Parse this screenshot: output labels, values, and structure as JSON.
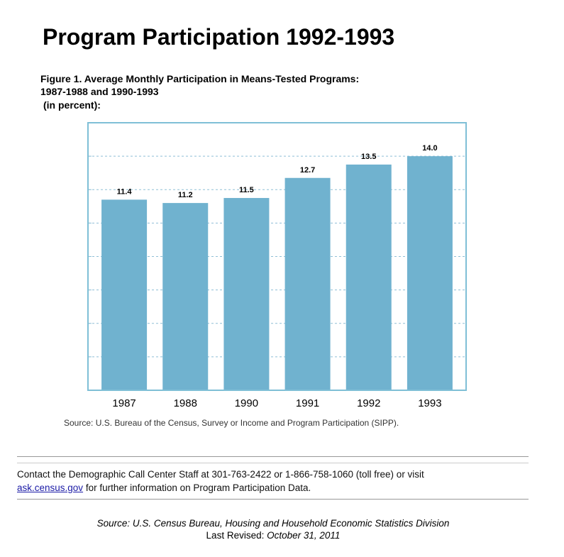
{
  "page": {
    "heading": "Program Participation 1992-1993",
    "source_note": "Source: U.S. Bureau of the Census, Survey or Income and Program Participation (SIPP).",
    "contact_text": "Contact the Demographic Call Center Staff at 301-763-2422 or 1-866-758-1060 (toll free) or visit",
    "contact_link": "ask.census.gov",
    "contact_tail": "for further information on Program Participation Data.",
    "footer_source": "Source: U.S. Census Bureau, Housing and Household Economic Statistics Division",
    "footer_revised_label": "Last Revised:",
    "footer_revised_date": "October 31, 2011"
  },
  "chart_data": {
    "type": "bar",
    "title": "Figure 1.  Average Monthly Participation in Means-Tested Programs:",
    "subtitle": "1987-1988 and 1990-1993",
    "unit_note": "(in percent):",
    "categories": [
      "1987",
      "1988",
      "1990",
      "1991",
      "1992",
      "1993"
    ],
    "values": [
      11.4,
      11.2,
      11.5,
      12.7,
      13.5,
      14.0
    ],
    "value_labels": [
      "11.4",
      "11.2",
      "11.5",
      "12.7",
      "13.5",
      "14.0"
    ],
    "color": "#70b2cf",
    "ylim": [
      0,
      16
    ],
    "yticks": [
      2,
      4,
      6,
      8,
      10,
      12,
      14
    ],
    "ytick_labels": false,
    "grid": true
  }
}
